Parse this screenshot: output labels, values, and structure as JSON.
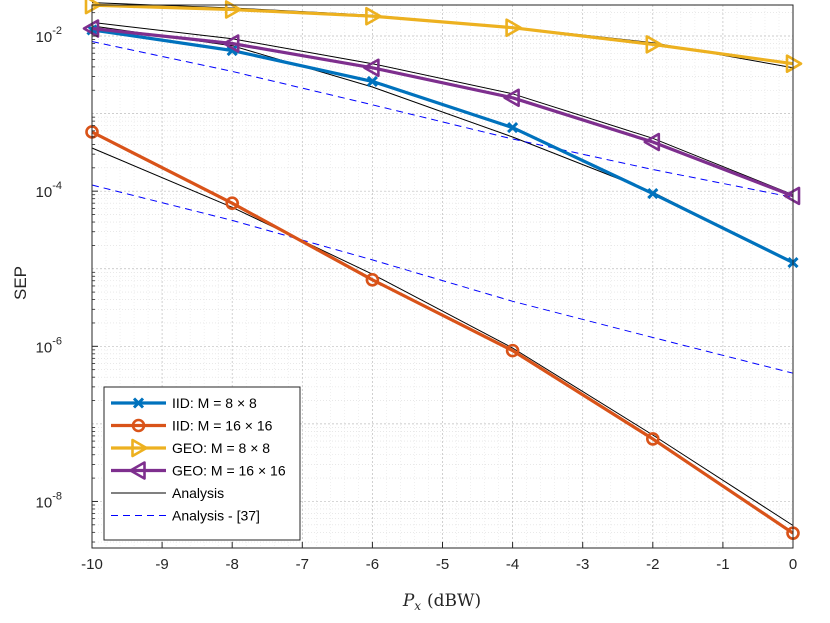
{
  "chart_data": {
    "type": "line",
    "title": "",
    "ylabel": "SEP",
    "xlabel": "P_x (dBW)",
    "xlabel_var": "P",
    "xlabel_sub": "x",
    "xlabel_unit": "(dBW)",
    "yscale": "log",
    "xlim": [
      -10,
      0
    ],
    "ylim_exp": [
      -8.6,
      -1.6
    ],
    "grid": "on (major and minor)",
    "legend_position": "bottom-left",
    "x_ticks": [
      "-10",
      "-9",
      "-8",
      "-7",
      "-6",
      "-5",
      "-4",
      "-3",
      "-2",
      "-1",
      "0"
    ],
    "y_ticks": [
      {
        "base": "10",
        "exp": "-2",
        "value_exp": -2
      },
      {
        "base": "10",
        "exp": "-4",
        "value_exp": -4
      },
      {
        "base": "10",
        "exp": "-6",
        "value_exp": -6
      },
      {
        "base": "10",
        "exp": "-8",
        "value_exp": -8
      }
    ],
    "series": [
      {
        "name": "IID: M = 8 × 8",
        "color": "#0072BD",
        "marker": "x",
        "x": [
          -10,
          -8,
          -6,
          -4,
          -2,
          0
        ],
        "y": [
          0.012,
          0.0065,
          0.0026,
          0.00066,
          9.3e-05,
          1.2e-05
        ]
      },
      {
        "name": "IID: M = 16 × 16",
        "color": "#D95319",
        "marker": "o",
        "x": [
          -10,
          -8,
          -6,
          -4,
          -2,
          0
        ],
        "y": [
          0.00058,
          7e-05,
          7.2e-06,
          8.8e-07,
          6.4e-08,
          3.9e-09
        ]
      },
      {
        "name": "GEO: M = 8 × 8",
        "color": "#EDB120",
        "marker": "triangle-right",
        "x": [
          -10,
          -8,
          -6,
          -4,
          -2,
          0
        ],
        "y": [
          0.025,
          0.022,
          0.018,
          0.0128,
          0.0078,
          0.0044
        ]
      },
      {
        "name": "GEO: M = 16 × 16",
        "color": "#7E2F8E",
        "marker": "triangle-left",
        "x": [
          -10,
          -8,
          -6,
          -4,
          -2,
          0
        ],
        "y": [
          0.0125,
          0.008,
          0.0039,
          0.0016,
          0.00043,
          8.7e-05
        ]
      },
      {
        "name": "Analysis",
        "color": "#000000",
        "style": "solid-thin",
        "sets": [
          {
            "x": [
              -10,
              -8,
              -6,
              -4,
              -2,
              0
            ],
            "y": [
              0.0135,
              0.0075,
              0.0022,
              0.0005,
              9.7e-05,
              1.2e-05
            ]
          },
          {
            "x": [
              -10,
              -8,
              -6,
              -4,
              -2,
              0
            ],
            "y": [
              0.00036,
              6.2e-05,
              8.5e-06,
              9.5e-07,
              7.2e-08,
              4.9e-09
            ]
          },
          {
            "x": [
              -10,
              -8,
              -6,
              -4,
              -2,
              0
            ],
            "y": [
              0.027,
              0.023,
              0.0185,
              0.013,
              0.0082,
              0.0039
            ]
          },
          {
            "x": [
              -10,
              -8,
              -6,
              -4,
              -2,
              0
            ],
            "y": [
              0.015,
              0.0092,
              0.0044,
              0.0018,
              0.00048,
              9e-05
            ]
          }
        ]
      },
      {
        "name": "Analysis - [37]",
        "color": "#0000FF",
        "style": "dashed-thin",
        "sets": [
          {
            "x": [
              -10,
              -8,
              -6,
              -4,
              -2,
              0
            ],
            "y": [
              0.0085,
              0.0035,
              0.0013,
              0.00047,
              0.00019,
              8.3e-05
            ]
          },
          {
            "x": [
              -10,
              -8,
              -6,
              -4,
              -2,
              0
            ],
            "y": [
              0.00012,
              4.2e-05,
              1.3e-05,
              3.8e-06,
              1.3e-06,
              4.5e-07
            ]
          }
        ]
      }
    ]
  }
}
